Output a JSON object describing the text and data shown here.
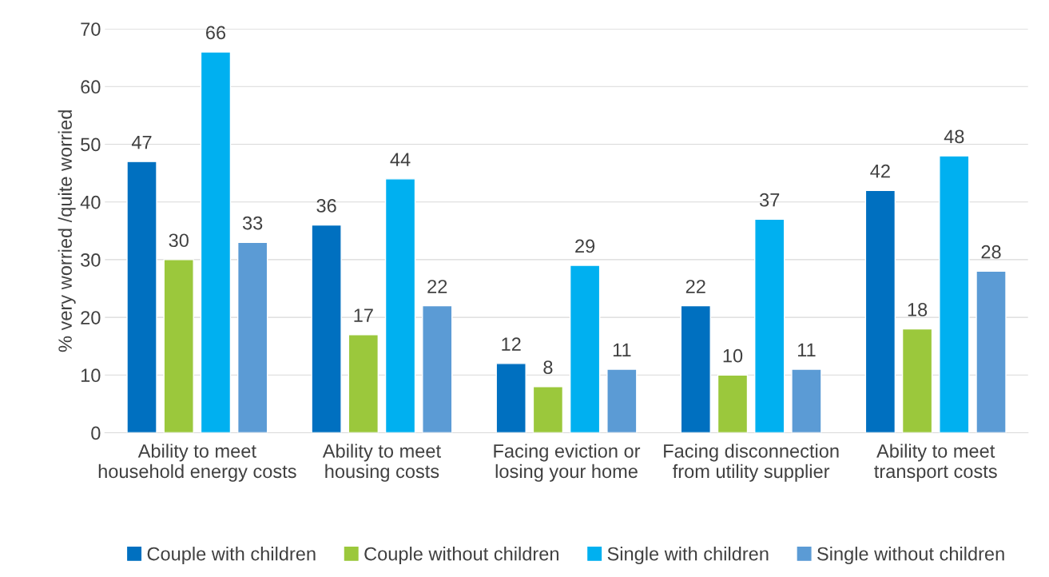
{
  "chart_data": {
    "type": "bar",
    "ylabel": "% very worried /quite worried",
    "categories": [
      "Ability to meet household energy costs",
      "Ability to meet housing costs",
      "Facing eviction or losing your home",
      "Facing disconnection from utility supplier",
      "Ability to meet transport costs"
    ],
    "series": [
      {
        "name": "Couple with children",
        "color": "#0070c0",
        "values": [
          47,
          36,
          12,
          22,
          42
        ]
      },
      {
        "name": "Couple without children",
        "color": "#9bc83c",
        "values": [
          30,
          17,
          8,
          10,
          18
        ]
      },
      {
        "name": "Single with children",
        "color": "#00b0f0",
        "values": [
          66,
          44,
          29,
          37,
          48
        ]
      },
      {
        "name": "Single without children",
        "color": "#5b9bd5",
        "values": [
          33,
          22,
          11,
          11,
          28
        ]
      }
    ],
    "ylim": [
      0,
      70
    ],
    "yticks": [
      0,
      10,
      20,
      30,
      40,
      50,
      60,
      70
    ],
    "grid": "y",
    "legend": "bottom",
    "data_labels": true
  }
}
